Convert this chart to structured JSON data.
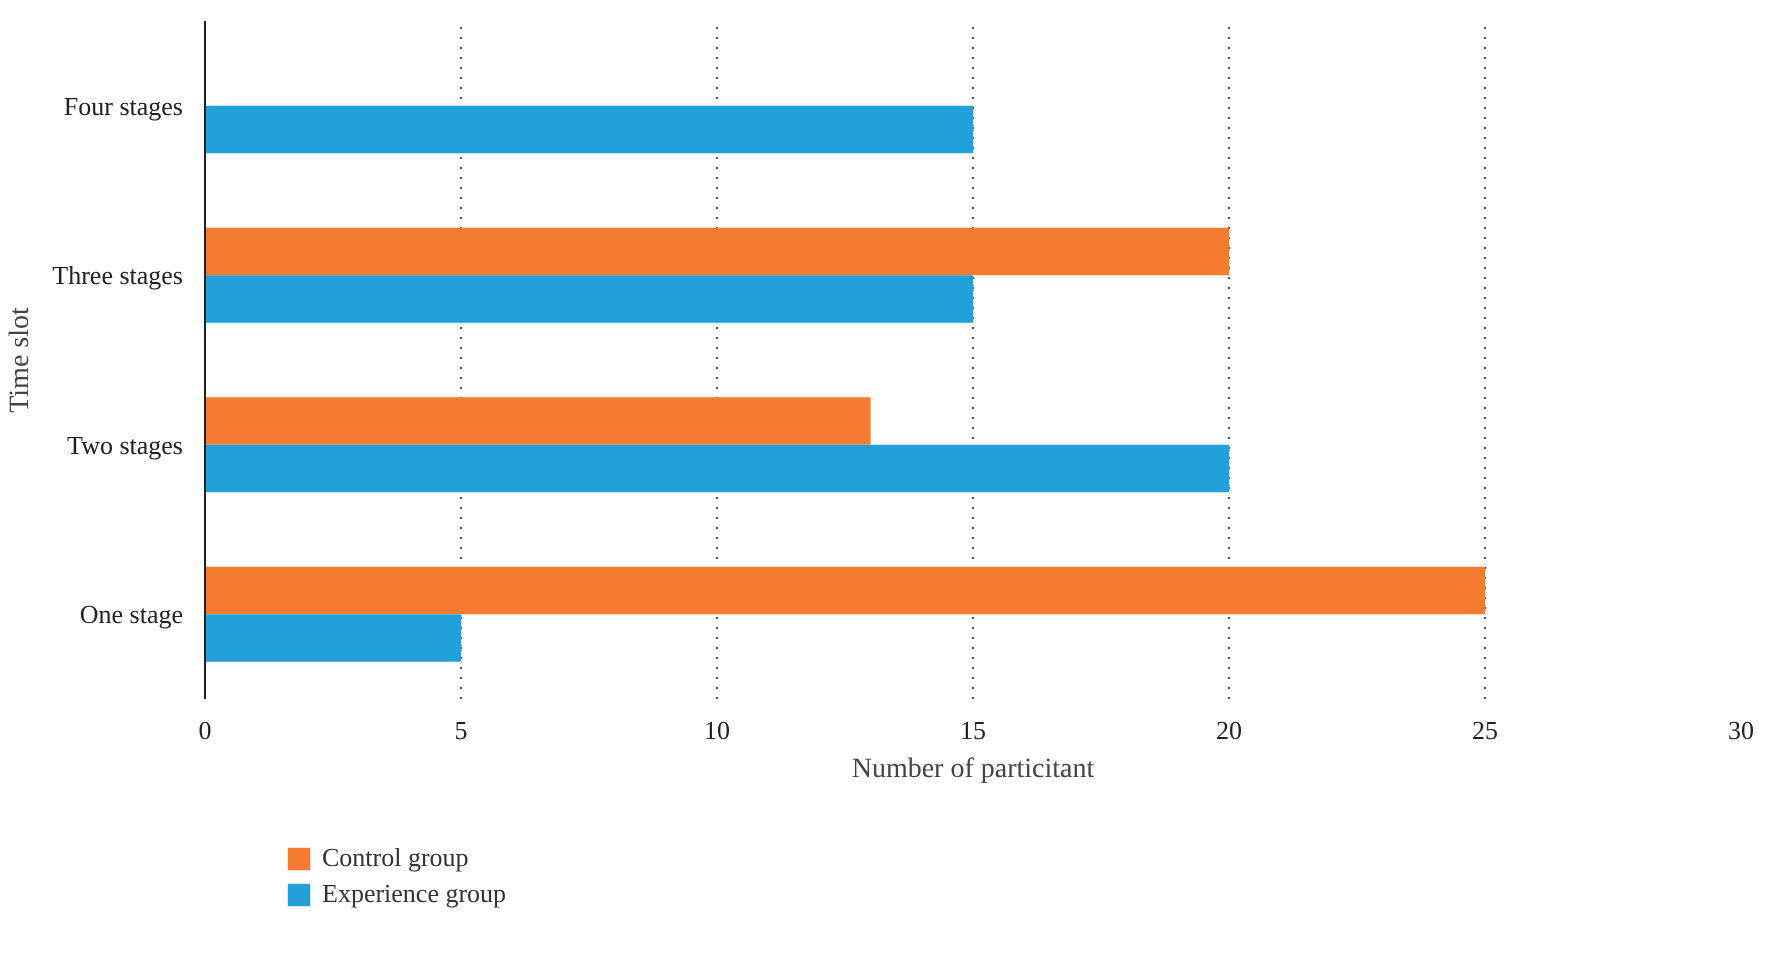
{
  "chart_data": {
    "type": "bar",
    "orientation": "horizontal",
    "xlabel": "Number of particitant",
    "ylabel": "Time slot",
    "categories": [
      "Four stages",
      "Three stages",
      "Two stages",
      "One stage"
    ],
    "series": [
      {
        "name": "Control group",
        "color": "#f47b30",
        "values": [
          null,
          20,
          13,
          25
        ]
      },
      {
        "name": "Experience group",
        "color": "#23a0da",
        "values": [
          15,
          15,
          20,
          5
        ]
      }
    ],
    "xlim": [
      0,
      30
    ],
    "xticks": [
      0,
      5,
      10,
      15,
      20,
      25,
      30
    ],
    "grid": "x",
    "legend": "bottom left"
  }
}
